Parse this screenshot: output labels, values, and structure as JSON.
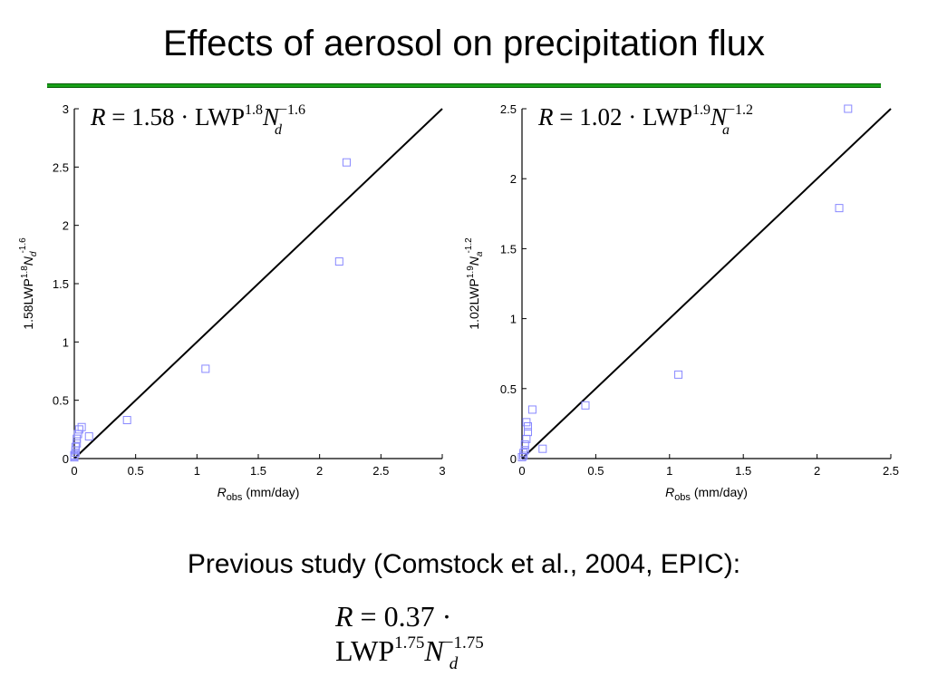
{
  "title": "Effects of aerosol on precipitation flux",
  "previous_study": "Previous study (Comstock et al., 2004, EPIC):",
  "formula_bottom": {
    "lhs": "R",
    "eq": " = 0.37 · LWP",
    "exp1": "1.75",
    "N": "N",
    "exp2": "−1.75",
    "sub": "d"
  },
  "colors": {
    "marker": "#8888ff",
    "line": "#000000",
    "rule": "#18a018"
  },
  "chart_data": [
    {
      "type": "scatter",
      "formula": {
        "lhs": "R",
        "eq": " = 1.58 · LWP",
        "exp1": "1.8",
        "N": "N",
        "exp2": "−1.6",
        "sub": "d"
      },
      "xlabel": {
        "var": "R",
        "sub": "obs",
        "unit": " (mm/day)"
      },
      "ylabel": {
        "pre": "1.58LWP",
        "exp1": "1.8",
        "N": "N",
        "sub": "d",
        "exp2": "-1.6"
      },
      "xlim": [
        0,
        3
      ],
      "ylim": [
        0,
        3
      ],
      "xticks": [
        "0",
        "0.5",
        "1",
        "1.5",
        "2",
        "2.5",
        "3"
      ],
      "yticks": [
        "0",
        "0.5",
        "1",
        "1.5",
        "2",
        "2.5",
        "3"
      ],
      "line": [
        [
          0,
          0
        ],
        [
          3,
          3
        ]
      ],
      "points": [
        [
          2.22,
          2.54
        ],
        [
          2.16,
          1.69
        ],
        [
          1.07,
          0.77
        ],
        [
          0.43,
          0.33
        ],
        [
          0.12,
          0.19
        ],
        [
          0.06,
          0.27
        ],
        [
          0.04,
          0.25
        ],
        [
          0.03,
          0.21
        ],
        [
          0.02,
          0.17
        ],
        [
          0.02,
          0.13
        ],
        [
          0.01,
          0.1
        ],
        [
          0.01,
          0.07
        ],
        [
          0.01,
          0.05
        ],
        [
          0.0,
          0.03
        ],
        [
          0.0,
          0.02
        ],
        [
          0.0,
          0.01
        ]
      ]
    },
    {
      "type": "scatter",
      "formula": {
        "lhs": "R",
        "eq": " = 1.02 · LWP",
        "exp1": "1.9",
        "N": "N",
        "exp2": "−1.2",
        "sub": "a"
      },
      "xlabel": {
        "var": "R",
        "sub": "obs",
        "unit": " (mm/day)"
      },
      "ylabel": {
        "pre": "1.02LWP",
        "exp1": "1.9",
        "N": "N",
        "sub": "a",
        "exp2": "-1.2"
      },
      "xlim": [
        0,
        2.5
      ],
      "ylim": [
        0,
        2.5
      ],
      "xticks": [
        "0",
        "0.5",
        "1",
        "1.5",
        "2",
        "2.5"
      ],
      "yticks": [
        "0",
        "0.5",
        "1",
        "1.5",
        "2",
        "2.5"
      ],
      "line": [
        [
          0,
          0
        ],
        [
          2.5,
          2.5
        ]
      ],
      "points": [
        [
          2.21,
          2.5
        ],
        [
          2.15,
          1.79
        ],
        [
          1.06,
          0.6
        ],
        [
          0.43,
          0.38
        ],
        [
          0.14,
          0.07
        ],
        [
          0.07,
          0.35
        ],
        [
          0.04,
          0.23
        ],
        [
          0.04,
          0.19
        ],
        [
          0.03,
          0.26
        ],
        [
          0.03,
          0.14
        ],
        [
          0.02,
          0.1
        ],
        [
          0.02,
          0.06
        ],
        [
          0.01,
          0.04
        ],
        [
          0.01,
          0.02
        ],
        [
          0.0,
          0.01
        ]
      ]
    }
  ]
}
